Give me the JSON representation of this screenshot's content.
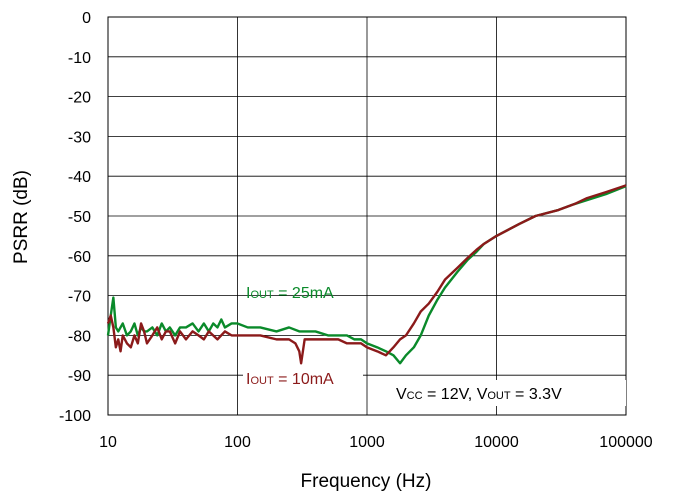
{
  "chart_data": {
    "type": "line",
    "xlabel": "Frequency (Hz)",
    "ylabel": "PSRR (dB)",
    "x_scale": "log",
    "xlim": [
      10,
      100000
    ],
    "ylim": [
      -100,
      0
    ],
    "x_ticks": [
      "10",
      "100",
      "1000",
      "10000",
      "100000"
    ],
    "y_ticks": [
      "0",
      "-10",
      "-20",
      "-30",
      "-40",
      "-50",
      "-60",
      "-70",
      "-80",
      "-90",
      "-100"
    ],
    "grid": true,
    "series": [
      {
        "name": "IOUT = 25mA",
        "color": "#0a8a2a",
        "x": [
          10,
          10.5,
          11,
          11.5,
          12,
          13,
          14,
          15,
          16,
          17,
          18,
          19,
          20,
          22,
          24,
          26,
          28,
          30,
          33,
          36,
          40,
          45,
          50,
          55,
          60,
          65,
          70,
          75,
          80,
          90,
          100,
          120,
          150,
          200,
          250,
          300,
          400,
          500,
          600,
          700,
          800,
          900,
          1000,
          1200,
          1400,
          1600,
          1800,
          2000,
          2300,
          2600,
          3000,
          3500,
          4000,
          5000,
          6000,
          7000,
          8000,
          10000,
          15000,
          20000,
          30000,
          40000,
          50000,
          70000,
          100000
        ],
        "y": [
          -80,
          -75,
          -70.5,
          -78,
          -79,
          -77,
          -80,
          -79,
          -77,
          -80,
          -78,
          -79,
          -79,
          -78,
          -80,
          -77,
          -79,
          -78,
          -80,
          -78,
          -78,
          -77,
          -79,
          -77,
          -79,
          -77,
          -78,
          -76,
          -78,
          -77,
          -77,
          -78,
          -78,
          -79,
          -78,
          -79,
          -79,
          -80,
          -80,
          -80,
          -81,
          -81,
          -82,
          -83,
          -84,
          -85,
          -87,
          -85,
          -83,
          -80,
          -75,
          -71,
          -68,
          -64,
          -61,
          -59,
          -57,
          -55,
          -52,
          -50,
          -48.5,
          -47,
          -46,
          -44.5,
          -42.5
        ]
      },
      {
        "name": "IOUT = 10mA",
        "color": "#8b1a1a",
        "x": [
          10,
          10.5,
          11,
          11.5,
          12,
          12.5,
          13,
          14,
          15,
          16,
          17,
          18,
          19,
          20,
          22,
          24,
          26,
          28,
          30,
          33,
          36,
          40,
          45,
          50,
          55,
          60,
          70,
          80,
          90,
          100,
          120,
          150,
          200,
          250,
          280,
          300,
          310,
          330,
          400,
          500,
          600,
          700,
          800,
          900,
          1000,
          1200,
          1400,
          1600,
          1800,
          2000,
          2300,
          2600,
          3000,
          3500,
          4000,
          5000,
          6000,
          7000,
          8000,
          10000,
          15000,
          20000,
          30000,
          40000,
          50000,
          70000,
          100000
        ],
        "y": [
          -77,
          -75,
          -78,
          -83,
          -81,
          -84,
          -80,
          -82,
          -83,
          -80,
          -82,
          -77,
          -79,
          -82,
          -80,
          -78,
          -81,
          -79,
          -79,
          -82,
          -79,
          -81,
          -79,
          -80,
          -81,
          -79,
          -81,
          -79,
          -80,
          -80,
          -80,
          -80,
          -81,
          -81,
          -82,
          -84,
          -87,
          -81,
          -81,
          -81,
          -81,
          -82,
          -82,
          -82,
          -83,
          -84,
          -85,
          -83,
          -81,
          -80,
          -77,
          -74,
          -72,
          -69,
          -66,
          -63,
          -60.5,
          -58.5,
          -57,
          -55,
          -52,
          -50,
          -48.5,
          -47,
          -45.5,
          -44,
          -42.3
        ]
      }
    ],
    "annotations": {
      "label_25": {
        "main": "I",
        "sub": "OUT",
        "rest": " = 25mA"
      },
      "label_10": {
        "main": "I",
        "sub": "OUT",
        "rest": " = 10mA"
      },
      "conditions": {
        "v1": "V",
        "s1": "CC",
        "r1": " = 12V, ",
        "v2": "V",
        "s2": "OUT",
        "r2": " = 3.3V"
      }
    }
  }
}
